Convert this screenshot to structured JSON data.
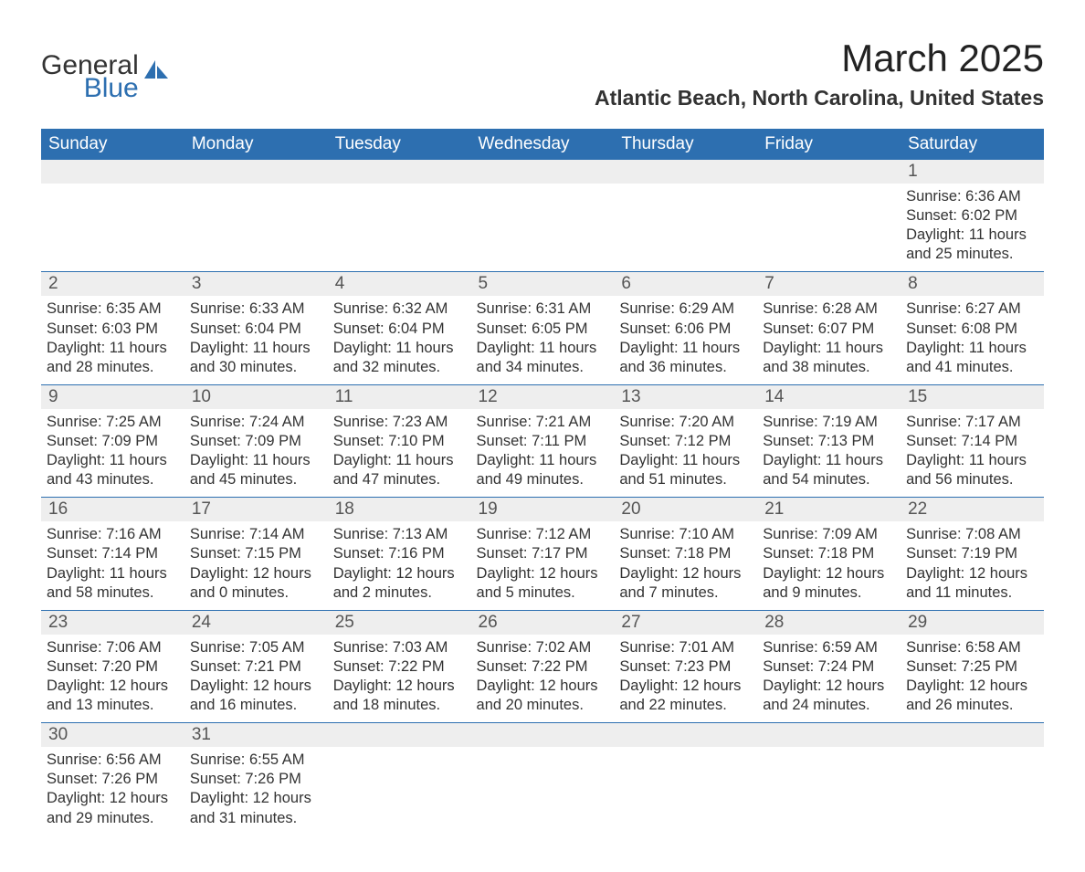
{
  "logo": {
    "line1": "General",
    "line2": "Blue",
    "color_general": "#333333",
    "color_blue": "#2d6fb0"
  },
  "title": "March 2025",
  "location": "Atlantic Beach, North Carolina, United States",
  "theme": {
    "header_bg": "#2d6fb0",
    "header_fg": "#ffffff",
    "daynum_bg": "#eeeeee",
    "daynum_fg": "#555555",
    "border": "#2d6fb0",
    "body_fg": "#333333"
  },
  "dayNames": [
    "Sunday",
    "Monday",
    "Tuesday",
    "Wednesday",
    "Thursday",
    "Friday",
    "Saturday"
  ],
  "weeks": [
    [
      null,
      null,
      null,
      null,
      null,
      null,
      {
        "n": "1",
        "sunrise": "6:36 AM",
        "sunset": "6:02 PM",
        "daylight": "11 hours and 25 minutes."
      }
    ],
    [
      {
        "n": "2",
        "sunrise": "6:35 AM",
        "sunset": "6:03 PM",
        "daylight": "11 hours and 28 minutes."
      },
      {
        "n": "3",
        "sunrise": "6:33 AM",
        "sunset": "6:04 PM",
        "daylight": "11 hours and 30 minutes."
      },
      {
        "n": "4",
        "sunrise": "6:32 AM",
        "sunset": "6:04 PM",
        "daylight": "11 hours and 32 minutes."
      },
      {
        "n": "5",
        "sunrise": "6:31 AM",
        "sunset": "6:05 PM",
        "daylight": "11 hours and 34 minutes."
      },
      {
        "n": "6",
        "sunrise": "6:29 AM",
        "sunset": "6:06 PM",
        "daylight": "11 hours and 36 minutes."
      },
      {
        "n": "7",
        "sunrise": "6:28 AM",
        "sunset": "6:07 PM",
        "daylight": "11 hours and 38 minutes."
      },
      {
        "n": "8",
        "sunrise": "6:27 AM",
        "sunset": "6:08 PM",
        "daylight": "11 hours and 41 minutes."
      }
    ],
    [
      {
        "n": "9",
        "sunrise": "7:25 AM",
        "sunset": "7:09 PM",
        "daylight": "11 hours and 43 minutes."
      },
      {
        "n": "10",
        "sunrise": "7:24 AM",
        "sunset": "7:09 PM",
        "daylight": "11 hours and 45 minutes."
      },
      {
        "n": "11",
        "sunrise": "7:23 AM",
        "sunset": "7:10 PM",
        "daylight": "11 hours and 47 minutes."
      },
      {
        "n": "12",
        "sunrise": "7:21 AM",
        "sunset": "7:11 PM",
        "daylight": "11 hours and 49 minutes."
      },
      {
        "n": "13",
        "sunrise": "7:20 AM",
        "sunset": "7:12 PM",
        "daylight": "11 hours and 51 minutes."
      },
      {
        "n": "14",
        "sunrise": "7:19 AM",
        "sunset": "7:13 PM",
        "daylight": "11 hours and 54 minutes."
      },
      {
        "n": "15",
        "sunrise": "7:17 AM",
        "sunset": "7:14 PM",
        "daylight": "11 hours and 56 minutes."
      }
    ],
    [
      {
        "n": "16",
        "sunrise": "7:16 AM",
        "sunset": "7:14 PM",
        "daylight": "11 hours and 58 minutes."
      },
      {
        "n": "17",
        "sunrise": "7:14 AM",
        "sunset": "7:15 PM",
        "daylight": "12 hours and 0 minutes."
      },
      {
        "n": "18",
        "sunrise": "7:13 AM",
        "sunset": "7:16 PM",
        "daylight": "12 hours and 2 minutes."
      },
      {
        "n": "19",
        "sunrise": "7:12 AM",
        "sunset": "7:17 PM",
        "daylight": "12 hours and 5 minutes."
      },
      {
        "n": "20",
        "sunrise": "7:10 AM",
        "sunset": "7:18 PM",
        "daylight": "12 hours and 7 minutes."
      },
      {
        "n": "21",
        "sunrise": "7:09 AM",
        "sunset": "7:18 PM",
        "daylight": "12 hours and 9 minutes."
      },
      {
        "n": "22",
        "sunrise": "7:08 AM",
        "sunset": "7:19 PM",
        "daylight": "12 hours and 11 minutes."
      }
    ],
    [
      {
        "n": "23",
        "sunrise": "7:06 AM",
        "sunset": "7:20 PM",
        "daylight": "12 hours and 13 minutes."
      },
      {
        "n": "24",
        "sunrise": "7:05 AM",
        "sunset": "7:21 PM",
        "daylight": "12 hours and 16 minutes."
      },
      {
        "n": "25",
        "sunrise": "7:03 AM",
        "sunset": "7:22 PM",
        "daylight": "12 hours and 18 minutes."
      },
      {
        "n": "26",
        "sunrise": "7:02 AM",
        "sunset": "7:22 PM",
        "daylight": "12 hours and 20 minutes."
      },
      {
        "n": "27",
        "sunrise": "7:01 AM",
        "sunset": "7:23 PM",
        "daylight": "12 hours and 22 minutes."
      },
      {
        "n": "28",
        "sunrise": "6:59 AM",
        "sunset": "7:24 PM",
        "daylight": "12 hours and 24 minutes."
      },
      {
        "n": "29",
        "sunrise": "6:58 AM",
        "sunset": "7:25 PM",
        "daylight": "12 hours and 26 minutes."
      }
    ],
    [
      {
        "n": "30",
        "sunrise": "6:56 AM",
        "sunset": "7:26 PM",
        "daylight": "12 hours and 29 minutes."
      },
      {
        "n": "31",
        "sunrise": "6:55 AM",
        "sunset": "7:26 PM",
        "daylight": "12 hours and 31 minutes."
      },
      null,
      null,
      null,
      null,
      null
    ]
  ],
  "labels": {
    "sunrise": "Sunrise:",
    "sunset": "Sunset:",
    "daylight": "Daylight:"
  }
}
